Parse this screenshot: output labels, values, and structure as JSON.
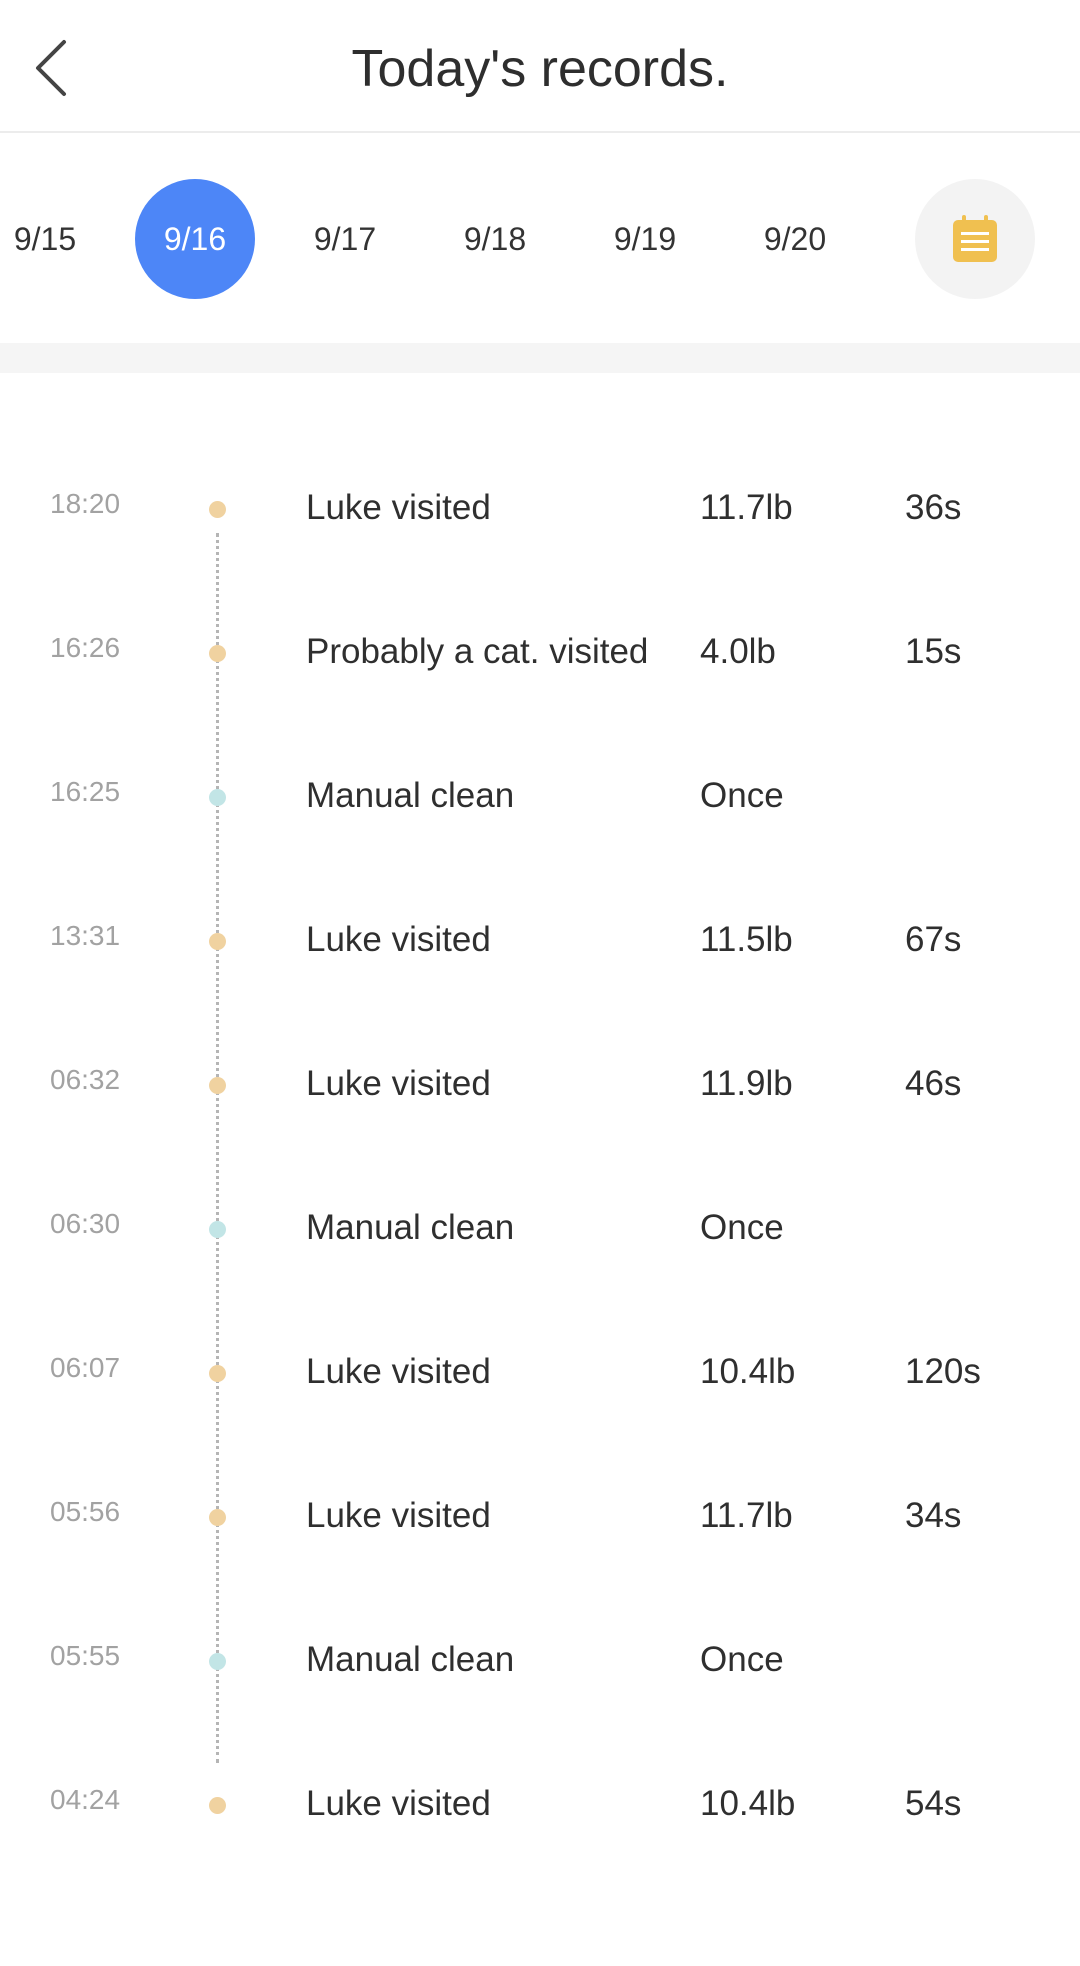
{
  "header": {
    "title": "Today's records.",
    "back_icon": "chevron-left-icon"
  },
  "dates": {
    "items": [
      "9/15",
      "9/16",
      "9/17",
      "9/18",
      "9/19",
      "9/20"
    ],
    "selected": "9/16",
    "calendar_icon": "calendar-icon",
    "calendar_color": "#f0c050"
  },
  "colors": {
    "accent": "#4d86f7",
    "visit_dot": "#f0d2a0",
    "clean_dot": "#c2e5e6"
  },
  "records": [
    {
      "time": "18:20",
      "type": "visit",
      "label": "Luke visited",
      "value": "11.7lb",
      "duration": "36s"
    },
    {
      "time": "16:26",
      "type": "visit",
      "label": "Probably a cat. visited",
      "value": "4.0lb",
      "duration": "15s"
    },
    {
      "time": "16:25",
      "type": "clean",
      "label": "Manual clean",
      "value": "Once",
      "duration": ""
    },
    {
      "time": "13:31",
      "type": "visit",
      "label": "Luke visited",
      "value": "11.5lb",
      "duration": "67s"
    },
    {
      "time": "06:32",
      "type": "visit",
      "label": "Luke visited",
      "value": "11.9lb",
      "duration": "46s"
    },
    {
      "time": "06:30",
      "type": "clean",
      "label": "Manual clean",
      "value": "Once",
      "duration": ""
    },
    {
      "time": "06:07",
      "type": "visit",
      "label": "Luke visited",
      "value": "10.4lb",
      "duration": "120s"
    },
    {
      "time": "05:56",
      "type": "visit",
      "label": "Luke visited",
      "value": "11.7lb",
      "duration": "34s"
    },
    {
      "time": "05:55",
      "type": "clean",
      "label": "Manual clean",
      "value": "Once",
      "duration": ""
    },
    {
      "time": "04:24",
      "type": "visit",
      "label": "Luke visited",
      "value": "10.4lb",
      "duration": "54s"
    }
  ]
}
